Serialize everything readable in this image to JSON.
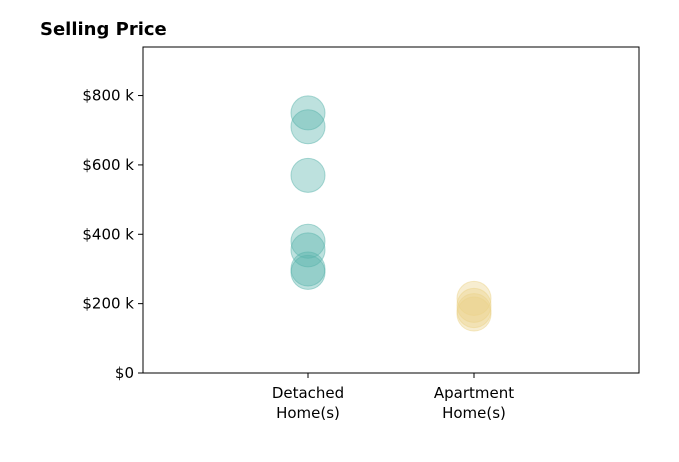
{
  "chart_data": {
    "type": "scatter",
    "title": "Selling Price",
    "xlabel": "",
    "ylabel": "",
    "categories": [
      "Detached\nHome(s)",
      "Apartment\nHome(s)"
    ],
    "ylim": [
      0,
      940000
    ],
    "yticks": [
      {
        "value": 0,
        "label": "$0"
      },
      {
        "value": 200000,
        "label": "$200 k"
      },
      {
        "value": 400000,
        "label": "$400 k"
      },
      {
        "value": 600000,
        "label": "$600 k"
      },
      {
        "value": 800000,
        "label": "$800 k"
      }
    ],
    "grid": false,
    "series": [
      {
        "category_index": 0,
        "color": "#5ab4ac",
        "values": [
          750000,
          710000,
          570000,
          380000,
          355000,
          300000,
          290000
        ]
      },
      {
        "category_index": 1,
        "color": "#ecd38a",
        "values": [
          215000,
          195000,
          180000,
          170000
        ]
      }
    ]
  }
}
